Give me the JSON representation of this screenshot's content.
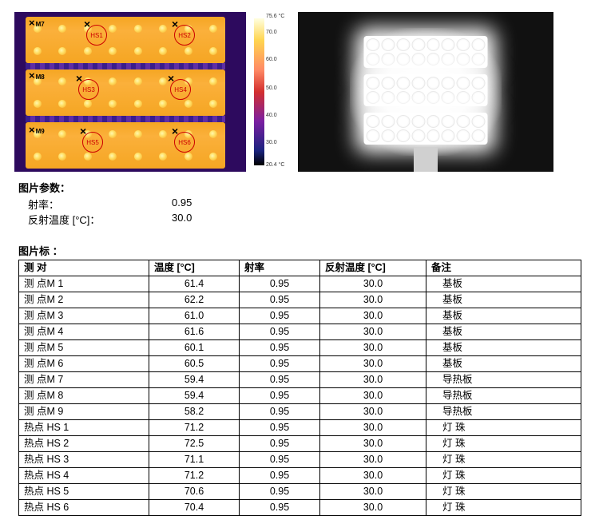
{
  "colorbar": {
    "max": "75.6 °C",
    "t70": "70.0",
    "t60": "60.0",
    "t50": "50.0",
    "t40": "40.0",
    "t30": "30.0",
    "min": "20.4 °C"
  },
  "thermal_markers": {
    "hs1": "HS1",
    "hs2": "HS2",
    "hs3": "HS3",
    "hs4": "HS4",
    "hs5": "HS5",
    "hs6": "HS6",
    "m7": "M7",
    "m8": "M8",
    "m9": "M9"
  },
  "params": {
    "title": "图片参数：",
    "emissivity_label": "射率：",
    "emissivity_value": "0.95",
    "refl_label": "反射温度 [°C]：",
    "refl_value": "30.0"
  },
  "table": {
    "title": "图片标 ：",
    "headers": {
      "obj": "测  对",
      "temp": "温度 [°C]",
      "emis": "射率",
      "refl": "反射温度 [°C]",
      "note": "备注"
    },
    "rows": [
      {
        "obj": "测  点M 1",
        "temp": "61.4",
        "emis": "0.95",
        "refl": "30.0",
        "note": "基板"
      },
      {
        "obj": "测  点M 2",
        "temp": "62.2",
        "emis": "0.95",
        "refl": "30.0",
        "note": "基板"
      },
      {
        "obj": "测  点M 3",
        "temp": "61.0",
        "emis": "0.95",
        "refl": "30.0",
        "note": "基板"
      },
      {
        "obj": "测  点M 4",
        "temp": "61.6",
        "emis": "0.95",
        "refl": "30.0",
        "note": "基板"
      },
      {
        "obj": "测  点M 5",
        "temp": "60.1",
        "emis": "0.95",
        "refl": "30.0",
        "note": "基板"
      },
      {
        "obj": "测  点M 6",
        "temp": "60.5",
        "emis": "0.95",
        "refl": "30.0",
        "note": "基板"
      },
      {
        "obj": "测  点M 7",
        "temp": "59.4",
        "emis": "0.95",
        "refl": "30.0",
        "note": "导热板"
      },
      {
        "obj": "测  点M 8",
        "temp": "59.4",
        "emis": "0.95",
        "refl": "30.0",
        "note": "导热板"
      },
      {
        "obj": "测  点M 9",
        "temp": "58.2",
        "emis": "0.95",
        "refl": "30.0",
        "note": "导热板"
      },
      {
        "obj": "热点 HS 1",
        "temp": "71.2",
        "emis": "0.95",
        "refl": "30.0",
        "note": "灯 珠"
      },
      {
        "obj": "热点 HS 2",
        "temp": "72.5",
        "emis": "0.95",
        "refl": "30.0",
        "note": "灯 珠"
      },
      {
        "obj": "热点 HS 3",
        "temp": "71.1",
        "emis": "0.95",
        "refl": "30.0",
        "note": "灯 珠"
      },
      {
        "obj": "热点 HS 4",
        "temp": "71.2",
        "emis": "0.95",
        "refl": "30.0",
        "note": "灯 珠"
      },
      {
        "obj": "热点 HS 5",
        "temp": "70.6",
        "emis": "0.95",
        "refl": "30.0",
        "note": "灯 珠"
      },
      {
        "obj": "热点 HS 6",
        "temp": "70.4",
        "emis": "0.95",
        "refl": "30.0",
        "note": "灯 珠"
      }
    ]
  }
}
